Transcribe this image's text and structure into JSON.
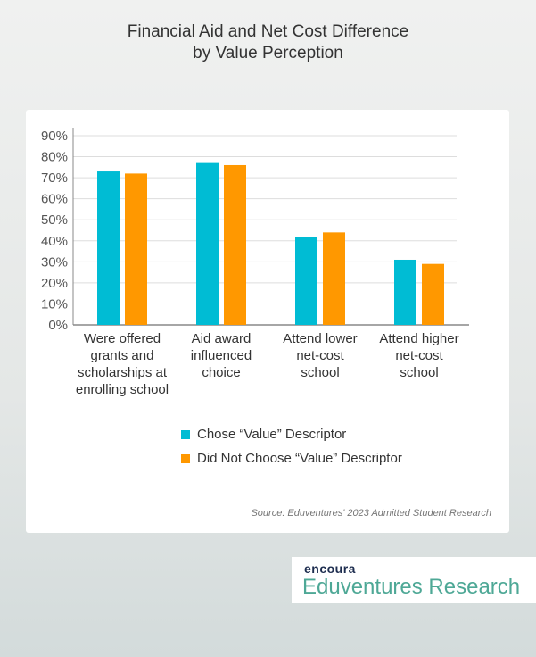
{
  "chart_data": {
    "type": "bar",
    "title": "Financial Aid and Net Cost Difference by Value Perception",
    "title_lines": [
      "Financial Aid and Net Cost Difference",
      "by Value Perception"
    ],
    "categories": [
      [
        "Were offered",
        "grants and",
        "scholarships at",
        "enrolling school"
      ],
      [
        "Aid award",
        "influenced",
        "choice"
      ],
      [
        "Attend lower",
        "net-cost",
        "school"
      ],
      [
        "Attend higher",
        "net-cost",
        "school"
      ]
    ],
    "series": [
      {
        "name": "Chose “Value” Descriptor",
        "color": "#00bcd4",
        "values": [
          73,
          77,
          42,
          31
        ]
      },
      {
        "name": "Did Not Choose “Value” Descriptor",
        "color": "#ff9800",
        "values": [
          72,
          76,
          44,
          29
        ]
      }
    ],
    "ylim": [
      0,
      90
    ],
    "yticks": [
      "0%",
      "10%",
      "20%",
      "30%",
      "40%",
      "50%",
      "60%",
      "70%",
      "80%",
      "90%"
    ],
    "grid": true,
    "legend_placement": "bottom",
    "source": "Source: Eduventures' 2023 Admitted Student Research"
  },
  "logo": {
    "brand": "encoura",
    "name": "Eduventures Research"
  }
}
